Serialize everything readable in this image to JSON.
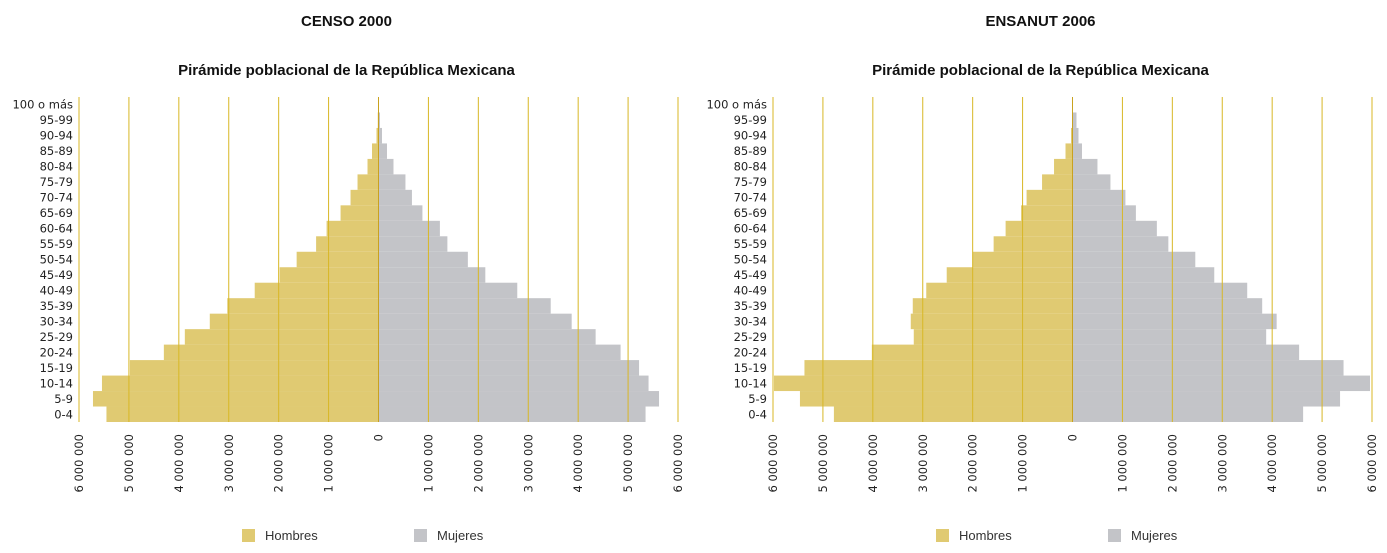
{
  "colors": {
    "men": "#E0CA72",
    "women": "#C3C4C8",
    "grid": "#D8B725",
    "axis": "#C9A21F"
  },
  "legend": {
    "men": "Hombres",
    "women": "Mujeres"
  },
  "chart_data": [
    {
      "type": "bar",
      "orientation": "horizontal-pyramid",
      "title": "CENSO 2000",
      "subtitle": "Pirámide poblacional de la República Mexicana",
      "categories": [
        "0-4",
        "5-9",
        "10-14",
        "15-19",
        "20-24",
        "25-29",
        "30-34",
        "35-39",
        "40-49",
        "45-49",
        "50-54",
        "55-59",
        "60-64",
        "65-69",
        "70-74",
        "75-79",
        "80-84",
        "85-89",
        "90-94",
        "95-99",
        "100 o más"
      ],
      "x_ticks": [
        "6 000 000",
        "5 000 000",
        "4 000 000",
        "3 000 000",
        "2 000 000",
        "1 000 000",
        "0",
        "1 000 000",
        "2 000 000",
        "3 000 000",
        "4 000 000",
        "5 000 000",
        "6 000 000"
      ],
      "xlim": [
        -6000000,
        6000000
      ],
      "series": [
        {
          "name": "Hombres",
          "values": [
            5450000,
            5720000,
            5540000,
            4980000,
            4300000,
            3880000,
            3380000,
            3030000,
            2480000,
            1980000,
            1640000,
            1250000,
            1040000,
            760000,
            560000,
            420000,
            220000,
            130000,
            40000,
            15000,
            5000
          ]
        },
        {
          "name": "Mujeres",
          "values": [
            5350000,
            5620000,
            5410000,
            5220000,
            4850000,
            4350000,
            3870000,
            3450000,
            2780000,
            2140000,
            1790000,
            1380000,
            1230000,
            880000,
            670000,
            540000,
            300000,
            170000,
            70000,
            30000,
            10000
          ]
        }
      ]
    },
    {
      "type": "bar",
      "orientation": "horizontal-pyramid",
      "title": "ENSANUT 2006",
      "subtitle": "Pirámide poblacional de la República Mexicana",
      "categories": [
        "0-4",
        "5-9",
        "10-14",
        "15-19",
        "20-24",
        "25-29",
        "30-34",
        "35-39",
        "40-49",
        "45-49",
        "50-54",
        "55-59",
        "60-64",
        "65-69",
        "70-74",
        "75-79",
        "80-84",
        "85-89",
        "90-94",
        "95-99",
        "100 o más"
      ],
      "x_ticks": [
        "6 000 000",
        "5 000 000",
        "4 000 000",
        "3 000 000",
        "2 000 000",
        "1 000 000",
        "0",
        "1 000 000",
        "2 000 000",
        "3 000 000",
        "4 000 000",
        "5 000 000",
        "6 000 000"
      ],
      "xlim": [
        -6000000,
        6000000
      ],
      "series": [
        {
          "name": "Hombres",
          "values": [
            4780000,
            5460000,
            5980000,
            5370000,
            4020000,
            3180000,
            3240000,
            3200000,
            2930000,
            2520000,
            2000000,
            1580000,
            1340000,
            1030000,
            920000,
            610000,
            370000,
            140000,
            30000,
            10000,
            3000
          ]
        },
        {
          "name": "Mujeres",
          "values": [
            4620000,
            5360000,
            5960000,
            5430000,
            4540000,
            3880000,
            4090000,
            3800000,
            3500000,
            2840000,
            2460000,
            1920000,
            1690000,
            1270000,
            1060000,
            760000,
            500000,
            190000,
            120000,
            80000,
            10000
          ]
        }
      ]
    }
  ]
}
